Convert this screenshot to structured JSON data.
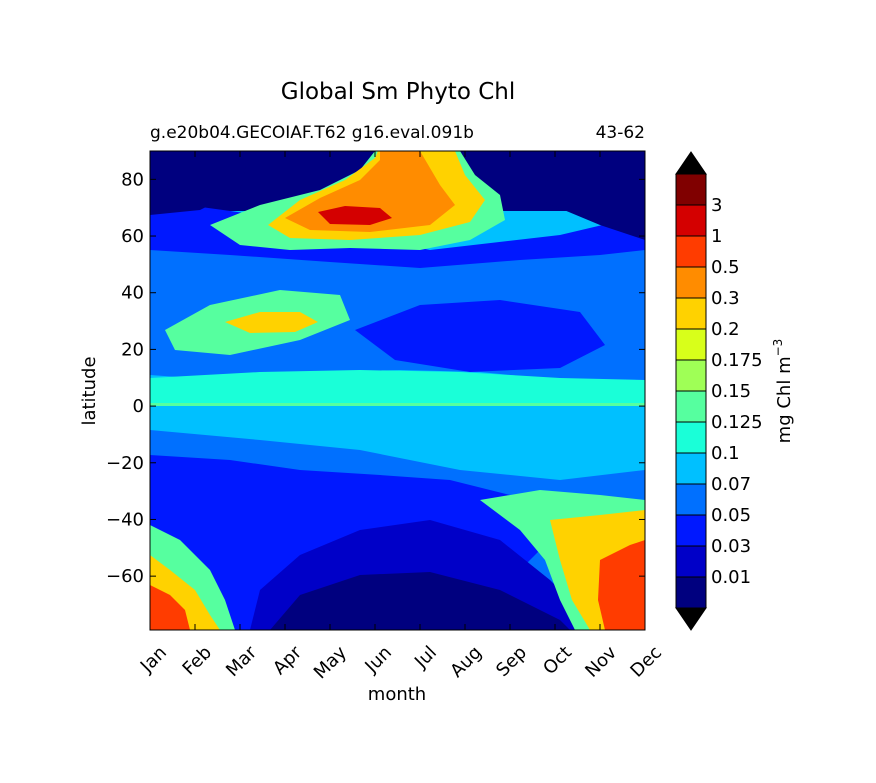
{
  "chart_data": {
    "type": "heatmap",
    "title": "Global Sm Phyto Chl",
    "subtitle_left": "g.e20b04.GECOIAF.T62 g16.eval.091b",
    "subtitle_right": "43-62",
    "xlabel": "month",
    "ylabel": "latitude",
    "x_ticks": [
      "Jan",
      "Feb",
      "Mar",
      "Apr",
      "May",
      "Jun",
      "Jul",
      "Aug",
      "Sep",
      "Oct",
      "Nov",
      "Dec"
    ],
    "ylim": [
      -79,
      90
    ],
    "y_ticks": [
      -60,
      -40,
      -20,
      0,
      20,
      40,
      60,
      80
    ],
    "colorbar": {
      "label": "mg Chl m",
      "label_exponent": "−3",
      "levels": [
        "0.01",
        "0.03",
        "0.05",
        "0.07",
        "0.1",
        "0.125",
        "0.15",
        "0.175",
        "0.2",
        "0.3",
        "0.5",
        "1",
        "3"
      ],
      "colors": [
        "#00007f",
        "#0000c8",
        "#0018ff",
        "#0070ff",
        "#00c0ff",
        "#1affd8",
        "#56ff9f",
        "#9fff56",
        "#d8ff1a",
        "#ffd200",
        "#ff8c00",
        "#ff3c00",
        "#d40000",
        "#800000"
      ],
      "extend": "both"
    },
    "features": [
      {
        "name": "Arctic summer bloom",
        "months": "May-Aug",
        "lat_range": [
          55,
          90
        ],
        "peak": "1-3"
      },
      {
        "name": "North subtropical winter-spring bloom",
        "months": "Feb-Jun",
        "lat_range": [
          20,
          40
        ],
        "peak": "0.2-0.3"
      },
      {
        "name": "Southern Ocean austral summer bloom",
        "months": "Oct-Feb",
        "lat_range": [
          -79,
          -30
        ],
        "peak": "0.5-1"
      },
      {
        "name": "Equatorial band",
        "months": "Jan-Dec",
        "lat_range": [
          -2,
          2
        ],
        "peak": "0.1-0.175"
      }
    ]
  }
}
